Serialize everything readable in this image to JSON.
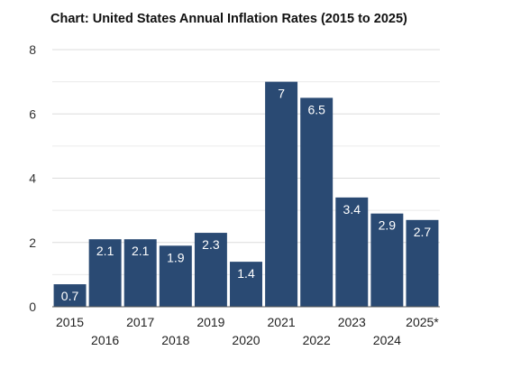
{
  "chart_data": {
    "type": "bar",
    "title": "Chart: United States Annual Inflation Rates (2015 to 2025)",
    "xlabel": "",
    "ylabel": "",
    "categories": [
      "2015",
      "2016",
      "2017",
      "2018",
      "2019",
      "2020",
      "2021",
      "2022",
      "2023",
      "2024",
      "2025*"
    ],
    "values": [
      0.7,
      2.1,
      2.1,
      1.9,
      2.3,
      1.4,
      7,
      6.5,
      3.4,
      2.9,
      2.7
    ],
    "data_labels": [
      "0.7",
      "2.1",
      "2.1",
      "1.9",
      "2.3",
      "1.4",
      "7",
      "6.5",
      "3.4",
      "2.9",
      "2.7"
    ],
    "ylim": [
      0,
      8
    ],
    "yticks": [
      0,
      2,
      4,
      6,
      8
    ],
    "ytick_labels": [
      "0",
      "2",
      "4",
      "6",
      "8"
    ],
    "grid": true,
    "legend": "none",
    "colors": {
      "bar": "#2a4a73",
      "grid": "#dcdcdc",
      "axis": "#555555"
    }
  }
}
